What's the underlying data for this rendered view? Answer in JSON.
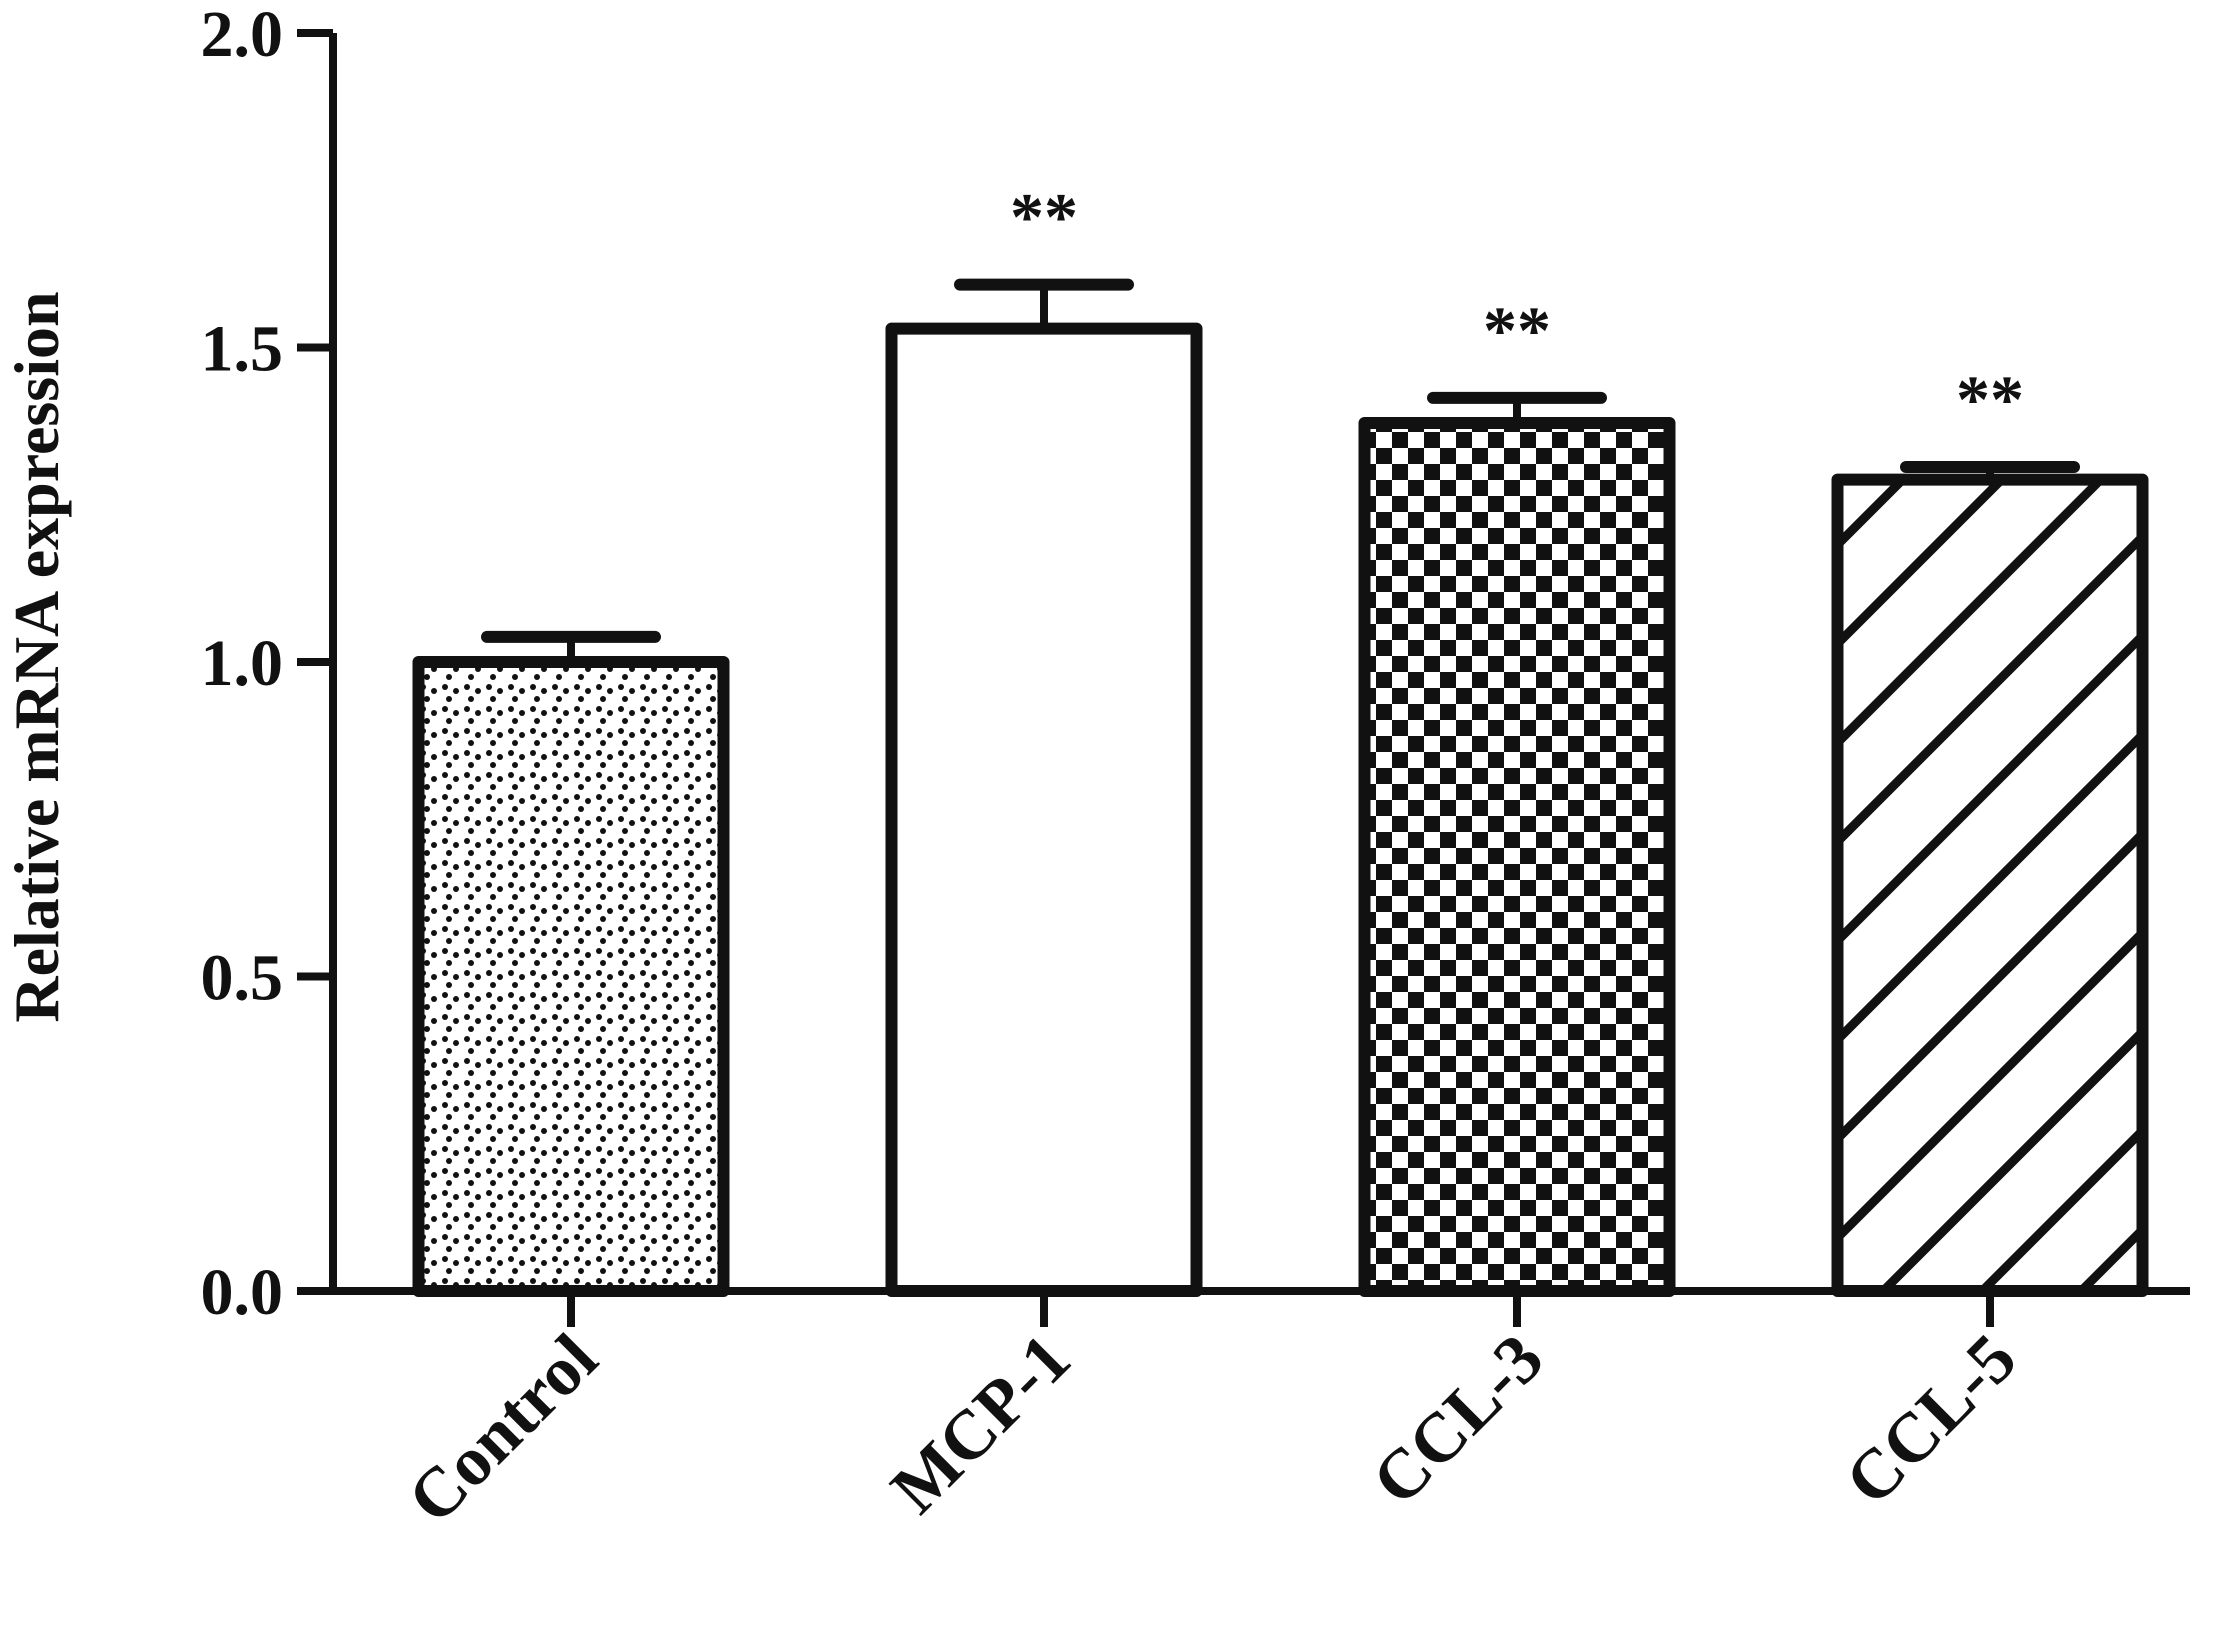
{
  "chart_data": {
    "type": "bar",
    "title": "",
    "xlabel": "",
    "ylabel": "Relative mRNA expression",
    "ylim": [
      0,
      2.0
    ],
    "yticks": [
      0.0,
      0.5,
      1.0,
      1.5,
      2.0
    ],
    "ytick_labels": [
      "0.0",
      "0.5",
      "1.0",
      "1.5",
      "2.0"
    ],
    "grid": false,
    "legend": "none",
    "categories": [
      "Control",
      "MCP-1",
      "CCL-3",
      "CCL-5"
    ],
    "values": [
      1.0,
      1.53,
      1.38,
      1.29
    ],
    "errors": [
      0.04,
      0.07,
      0.04,
      0.02
    ],
    "patterns": [
      "dots",
      "none",
      "checker",
      "diagonal-stripes"
    ],
    "annotations": [
      "",
      "**",
      "**",
      "**"
    ],
    "colors": {
      "ink": "#111111",
      "background": "#ffffff"
    }
  }
}
